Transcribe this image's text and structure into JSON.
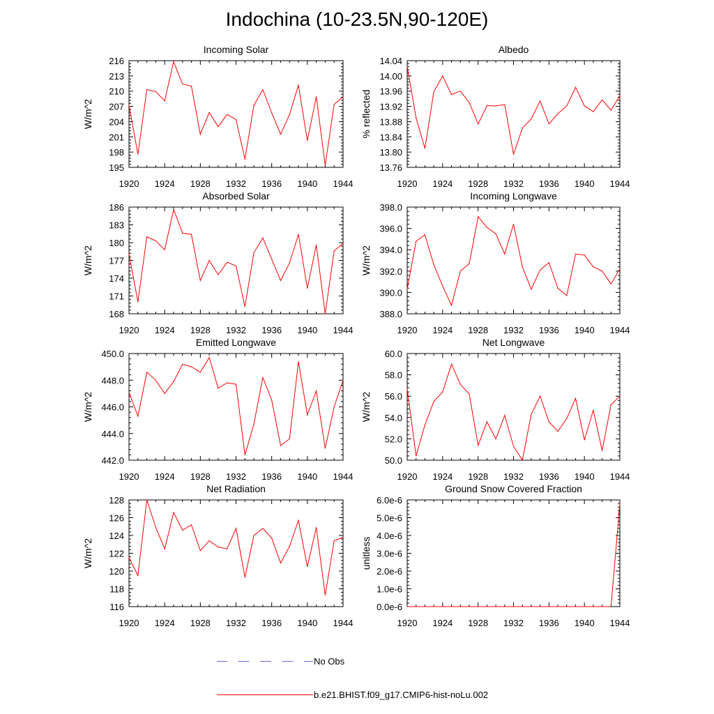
{
  "title": "Indochina (10-23.5N,90-120E)",
  "legend": [
    {
      "label": "No Obs",
      "color": "#6a6ad8",
      "dash": true
    },
    {
      "label": "b.e21.BHIST.f09_g17.CMIP6-hist-noLu.002",
      "color": "#ff0000",
      "dash": false
    }
  ],
  "chart_data": [
    {
      "type": "line",
      "title": "Incoming Solar",
      "ylabel": "W/m^2",
      "x": [
        1920,
        1921,
        1922,
        1923,
        1924,
        1925,
        1926,
        1927,
        1928,
        1929,
        1930,
        1931,
        1932,
        1933,
        1934,
        1935,
        1936,
        1937,
        1938,
        1939,
        1940,
        1941,
        1942,
        1943,
        1944
      ],
      "values": [
        207.2,
        197.6,
        210.3,
        209.9,
        208.1,
        215.8,
        211.4,
        211.0,
        201.5,
        205.8,
        203.0,
        205.4,
        204.4,
        196.6,
        207.2,
        210.3,
        205.7,
        201.5,
        205.4,
        211.2,
        200.3,
        208.9,
        195.4,
        207.4,
        208.9
      ],
      "ylim": [
        195,
        216
      ],
      "yticks": [
        "195",
        "198",
        "201",
        "204",
        "207",
        "210",
        "213",
        "216"
      ],
      "yticks_values": [
        195,
        198,
        201,
        204,
        207,
        210,
        213,
        216
      ],
      "xticks": [
        "1920",
        "1924",
        "1928",
        "1932",
        "1936",
        "1940",
        "1944"
      ],
      "color": "#ff0000"
    },
    {
      "type": "line",
      "title": "Albedo",
      "ylabel": "% reflected",
      "x": [
        1920,
        1921,
        1922,
        1923,
        1924,
        1925,
        1926,
        1927,
        1928,
        1929,
        1930,
        1931,
        1932,
        1933,
        1934,
        1935,
        1936,
        1937,
        1938,
        1939,
        1940,
        1941,
        1942,
        1943,
        1944
      ],
      "values": [
        14.025,
        13.89,
        13.81,
        13.958,
        14.0,
        13.951,
        13.96,
        13.93,
        13.874,
        13.922,
        13.921,
        13.925,
        13.794,
        13.863,
        13.887,
        13.934,
        13.874,
        13.901,
        13.921,
        13.97,
        13.921,
        13.906,
        13.937,
        13.91,
        13.948
      ],
      "ylim": [
        13.76,
        14.04
      ],
      "yticks": [
        "13.76",
        "13.80",
        "13.84",
        "13.88",
        "13.92",
        "13.96",
        "14.00",
        "14.04"
      ],
      "yticks_values": [
        13.76,
        13.8,
        13.84,
        13.88,
        13.92,
        13.96,
        14.0,
        14.04
      ],
      "xticks": [
        "1920",
        "1924",
        "1928",
        "1932",
        "1936",
        "1940",
        "1944"
      ],
      "color": "#ff0000"
    },
    {
      "type": "line",
      "title": "Absorbed Solar",
      "ylabel": "W/m^2",
      "x": [
        1920,
        1921,
        1922,
        1923,
        1924,
        1925,
        1926,
        1927,
        1928,
        1929,
        1930,
        1931,
        1932,
        1933,
        1934,
        1935,
        1936,
        1937,
        1938,
        1939,
        1940,
        1941,
        1942,
        1943,
        1944
      ],
      "values": [
        178.1,
        170.0,
        181.0,
        180.3,
        178.8,
        185.6,
        181.6,
        181.4,
        173.6,
        177.0,
        174.6,
        176.7,
        176.1,
        169.2,
        178.3,
        180.8,
        177.2,
        173.6,
        176.6,
        181.4,
        172.3,
        179.6,
        168.0,
        178.6,
        179.9
      ],
      "ylim": [
        168,
        186
      ],
      "yticks": [
        "168",
        "171",
        "174",
        "177",
        "180",
        "183",
        "186"
      ],
      "yticks_values": [
        168,
        171,
        174,
        177,
        180,
        183,
        186
      ],
      "xticks": [
        "1920",
        "1924",
        "1928",
        "1932",
        "1936",
        "1940",
        "1944"
      ],
      "color": "#ff0000"
    },
    {
      "type": "line",
      "title": "Incoming Longwave",
      "ylabel": "W/m^2",
      "x": [
        1920,
        1921,
        1922,
        1923,
        1924,
        1925,
        1926,
        1927,
        1928,
        1929,
        1930,
        1931,
        1932,
        1933,
        1934,
        1935,
        1936,
        1937,
        1938,
        1939,
        1940,
        1941,
        1942,
        1943,
        1944
      ],
      "values": [
        390.3,
        394.8,
        395.4,
        392.6,
        390.6,
        388.8,
        392.0,
        392.7,
        397.1,
        396.1,
        395.5,
        393.6,
        396.4,
        392.4,
        390.3,
        392.1,
        392.8,
        390.4,
        389.7,
        393.6,
        393.5,
        392.4,
        392.0,
        390.8,
        392.2
      ],
      "ylim": [
        388.0,
        398.0
      ],
      "yticks": [
        "388.0",
        "390.0",
        "392.0",
        "394.0",
        "396.0",
        "398.0"
      ],
      "yticks_values": [
        388,
        390,
        392,
        394,
        396,
        398
      ],
      "xticks": [
        "1920",
        "1924",
        "1928",
        "1932",
        "1936",
        "1940",
        "1944"
      ],
      "color": "#ff0000"
    },
    {
      "type": "line",
      "title": "Emitted Longwave",
      "ylabel": "W/m^2",
      "x": [
        1920,
        1921,
        1922,
        1923,
        1924,
        1925,
        1926,
        1927,
        1928,
        1929,
        1930,
        1931,
        1932,
        1933,
        1934,
        1935,
        1936,
        1937,
        1938,
        1939,
        1940,
        1941,
        1942,
        1943,
        1944
      ],
      "values": [
        447.1,
        445.3,
        448.6,
        448.0,
        447.0,
        447.9,
        449.2,
        449.0,
        448.6,
        449.7,
        447.4,
        447.8,
        447.7,
        442.4,
        444.7,
        448.2,
        446.5,
        443.1,
        443.6,
        449.4,
        445.4,
        447.2,
        442.9,
        446.0,
        448.0
      ],
      "ylim": [
        442.0,
        450.0
      ],
      "yticks": [
        "442.0",
        "444.0",
        "446.0",
        "448.0",
        "450.0"
      ],
      "yticks_values": [
        442,
        444,
        446,
        448,
        450
      ],
      "xticks": [
        "1920",
        "1924",
        "1928",
        "1932",
        "1936",
        "1940",
        "1944"
      ],
      "color": "#ff0000"
    },
    {
      "type": "line",
      "title": "Net Longwave",
      "ylabel": "W/m^2",
      "x": [
        1920,
        1921,
        1922,
        1923,
        1924,
        1925,
        1926,
        1927,
        1928,
        1929,
        1930,
        1931,
        1932,
        1933,
        1934,
        1935,
        1936,
        1937,
        1938,
        1939,
        1940,
        1941,
        1942,
        1943,
        1944
      ],
      "values": [
        56.7,
        50.4,
        53.3,
        55.5,
        56.4,
        59.0,
        57.1,
        56.2,
        51.4,
        53.6,
        52.0,
        54.2,
        51.3,
        50.0,
        54.3,
        56.0,
        53.6,
        52.7,
        53.9,
        55.8,
        51.9,
        54.7,
        50.9,
        55.2,
        56.0
      ],
      "ylim": [
        50.0,
        60.0
      ],
      "yticks": [
        "50.0",
        "52.0",
        "54.0",
        "56.0",
        "58.0",
        "60.0"
      ],
      "yticks_values": [
        50,
        52,
        54,
        56,
        58,
        60
      ],
      "xticks": [
        "1920",
        "1924",
        "1928",
        "1932",
        "1936",
        "1940",
        "1944"
      ],
      "color": "#ff0000"
    },
    {
      "type": "line",
      "title": "Net Radiation",
      "ylabel": "W/m^2",
      "x": [
        1920,
        1921,
        1922,
        1923,
        1924,
        1925,
        1926,
        1927,
        1928,
        1929,
        1930,
        1931,
        1932,
        1933,
        1934,
        1935,
        1936,
        1937,
        1938,
        1939,
        1940,
        1941,
        1942,
        1943,
        1944
      ],
      "values": [
        121.5,
        119.5,
        128.0,
        124.9,
        122.5,
        126.6,
        124.6,
        125.2,
        122.3,
        123.4,
        122.7,
        122.5,
        124.8,
        119.3,
        124.0,
        124.8,
        123.7,
        120.9,
        122.8,
        125.7,
        120.5,
        124.9,
        117.3,
        123.4,
        123.8
      ],
      "ylim": [
        116,
        128
      ],
      "yticks": [
        "116",
        "118",
        "120",
        "122",
        "124",
        "126",
        "128"
      ],
      "yticks_values": [
        116,
        118,
        120,
        122,
        124,
        126,
        128
      ],
      "xticks": [
        "1920",
        "1924",
        "1928",
        "1932",
        "1936",
        "1940",
        "1944"
      ],
      "color": "#ff0000"
    },
    {
      "type": "line",
      "title": "Ground Snow Covered Fraction",
      "ylabel": "unitless",
      "x": [
        1920,
        1921,
        1922,
        1923,
        1924,
        1925,
        1926,
        1927,
        1928,
        1929,
        1930,
        1931,
        1932,
        1933,
        1934,
        1935,
        1936,
        1937,
        1938,
        1939,
        1940,
        1941,
        1942,
        1943,
        1944
      ],
      "values": [
        0,
        0,
        0,
        0,
        0,
        0,
        0,
        0,
        0,
        0,
        0,
        0,
        0,
        0,
        0,
        0,
        0,
        0,
        0,
        0,
        0,
        0,
        0,
        0,
        5.8e-06
      ],
      "ylim": [
        0,
        6e-06
      ],
      "yticks": [
        "0.0e-6",
        "1.0e-6",
        "2.0e-6",
        "3.0e-6",
        "4.0e-6",
        "5.0e-6",
        "6.0e-6"
      ],
      "yticks_values": [
        0,
        1e-06,
        2e-06,
        3e-06,
        4e-06,
        5e-06,
        6e-06
      ],
      "xticks": [
        "1920",
        "1924",
        "1928",
        "1932",
        "1936",
        "1940",
        "1944"
      ],
      "color": "#ff0000"
    }
  ]
}
